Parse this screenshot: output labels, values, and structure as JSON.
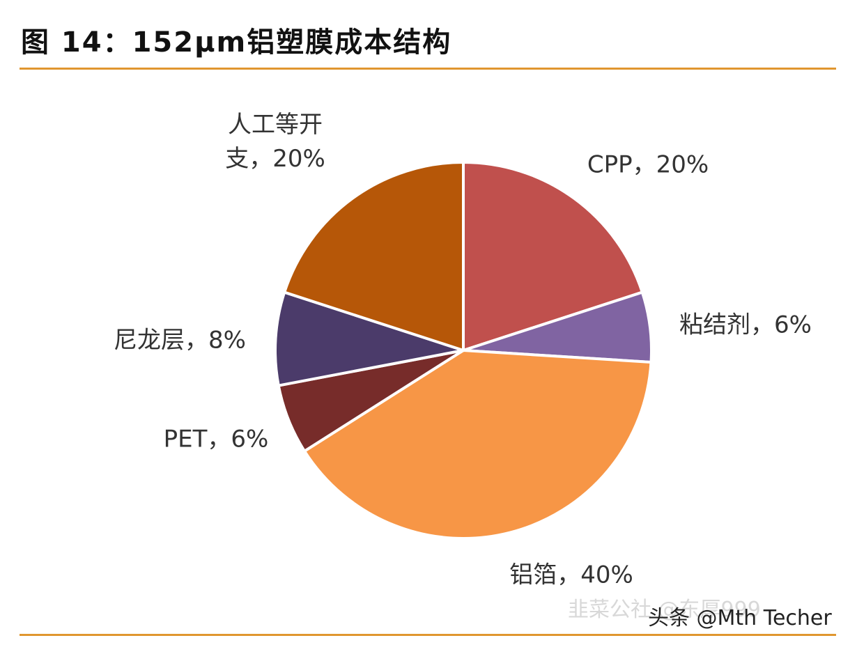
{
  "chart_data": {
    "type": "pie",
    "title": "图 14：152μm铝塑膜成本结构",
    "categories": [
      "CPP",
      "粘结剂",
      "铝箔",
      "PET",
      "尼龙层",
      "人工等开支"
    ],
    "values": [
      20,
      6,
      40,
      6,
      8,
      20
    ],
    "value_labels": [
      "CPP，20%",
      "粘结剂，6%",
      "铝箔，40%",
      "PET，6%",
      "尼龙层，8%",
      "人工等开支，20%"
    ],
    "colors": [
      "#c0504d",
      "#8064a2",
      "#f79646",
      "#772c2a",
      "#4b3b6a",
      "#b65708"
    ],
    "watermarks": [
      "韭菜公社 @东厚999",
      "头条 @Mth Techer"
    ]
  }
}
